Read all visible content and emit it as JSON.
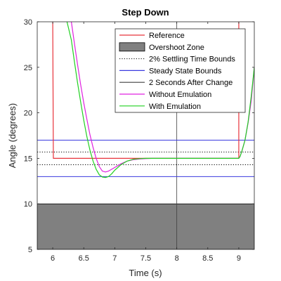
{
  "chart_data": {
    "type": "line",
    "title": "Step Down",
    "xlabel": "Time (s)",
    "ylabel": "Angle (degrees)",
    "xlim": [
      5.75,
      9.25
    ],
    "ylim": [
      5,
      30
    ],
    "xticks": [
      6,
      6.5,
      7,
      7.5,
      8,
      8.5,
      9
    ],
    "xtick_labels": [
      "6",
      "6.5",
      "7",
      "7.5",
      "8",
      "8.5",
      "9"
    ],
    "yticks": [
      5,
      10,
      15,
      20,
      25,
      30
    ],
    "ytick_labels": [
      "5",
      "10",
      "15",
      "20",
      "25",
      "30"
    ],
    "grid": false,
    "legend_location": "top-right",
    "legend": [
      {
        "label": "Reference",
        "color": "#e8333b",
        "style": "line"
      },
      {
        "label": "Overshoot Zone",
        "color": "#808080",
        "style": "patch"
      },
      {
        "label": "2% Settling Time Bounds",
        "color": "#000000",
        "style": "dotted"
      },
      {
        "label": "Steady State Bounds",
        "color": "#3a3adf",
        "style": "line"
      },
      {
        "label": "2 Seconds After Change",
        "color": "#404040",
        "style": "line"
      },
      {
        "label": "Without Emulation",
        "color": "#e020e0",
        "style": "line"
      },
      {
        "label": "With Emulation",
        "color": "#20d020",
        "style": "line"
      }
    ],
    "overshoot_zone": {
      "y_from": 5,
      "y_to": 10,
      "color": "#808080"
    },
    "settling_bounds": [
      15.7,
      14.3
    ],
    "steady_state_bounds": [
      17,
      13
    ],
    "change_marker_x": 8,
    "series": [
      {
        "name": "Reference",
        "color": "#e8333b",
        "x": [
          6.0,
          6.0,
          6.01,
          9.0,
          9.0
        ],
        "y": [
          30,
          30,
          15,
          15,
          30
        ]
      },
      {
        "name": "Without Emulation",
        "color": "#e020e0",
        "x": [
          6.3,
          6.35,
          6.4,
          6.45,
          6.5,
          6.55,
          6.6,
          6.65,
          6.7,
          6.75,
          6.8,
          6.85,
          6.9,
          7.0,
          7.1,
          7.2,
          7.3,
          7.4,
          7.5,
          7.6,
          7.7,
          8.0,
          8.5,
          8.9,
          9.0,
          9.02,
          9.05,
          9.1,
          9.15,
          9.2,
          9.25
        ],
        "y": [
          30.0,
          27.6,
          25.3,
          23.1,
          21.1,
          19.3,
          17.6,
          16.2,
          15.0,
          14.1,
          13.6,
          13.5,
          13.6,
          14.0,
          14.4,
          14.7,
          14.85,
          14.93,
          14.97,
          15.0,
          15.0,
          15.0,
          15.0,
          15.0,
          15.0,
          15.2,
          15.8,
          17.0,
          18.9,
          21.3,
          25.0
        ]
      },
      {
        "name": "With Emulation",
        "color": "#20d020",
        "x": [
          6.23,
          6.3,
          6.35,
          6.4,
          6.45,
          6.5,
          6.55,
          6.6,
          6.65,
          6.7,
          6.75,
          6.8,
          6.85,
          6.9,
          6.95,
          7.0,
          7.1,
          7.2,
          7.3,
          7.4,
          7.5,
          7.6,
          8.0,
          8.5,
          8.9,
          9.0,
          9.02,
          9.05,
          9.1,
          9.15,
          9.2,
          9.25
        ],
        "y": [
          30.0,
          28.0,
          25.6,
          23.3,
          21.2,
          19.2,
          17.4,
          15.9,
          14.7,
          13.8,
          13.2,
          12.95,
          12.9,
          13.0,
          13.3,
          13.7,
          14.3,
          14.7,
          14.9,
          14.97,
          15.0,
          15.0,
          15.0,
          15.0,
          15.0,
          15.0,
          15.2,
          15.8,
          17.0,
          19.0,
          21.8,
          25.0
        ]
      }
    ]
  }
}
